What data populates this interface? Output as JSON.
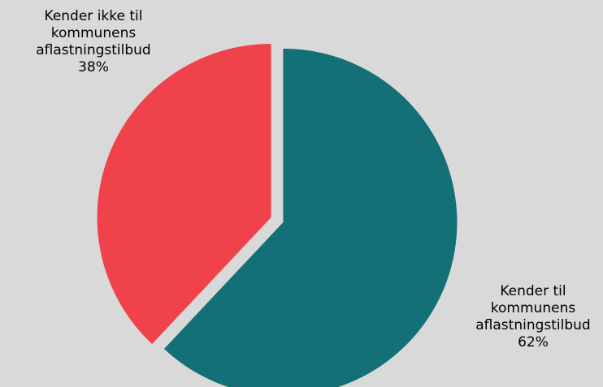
{
  "chart_data": {
    "type": "pie",
    "slices": [
      {
        "label_lines": [
          "Kender til",
          "kommunens",
          "aflastningstilbud"
        ],
        "value_label": "62%",
        "value": 62,
        "color": "#147077"
      },
      {
        "label_lines": [
          "Kender ikke til",
          "kommunens",
          "aflastningstilbud"
        ],
        "value_label": "38%",
        "value": 38,
        "color": "#f0424a"
      }
    ],
    "background": "#d9d9d9",
    "legend": "none"
  }
}
